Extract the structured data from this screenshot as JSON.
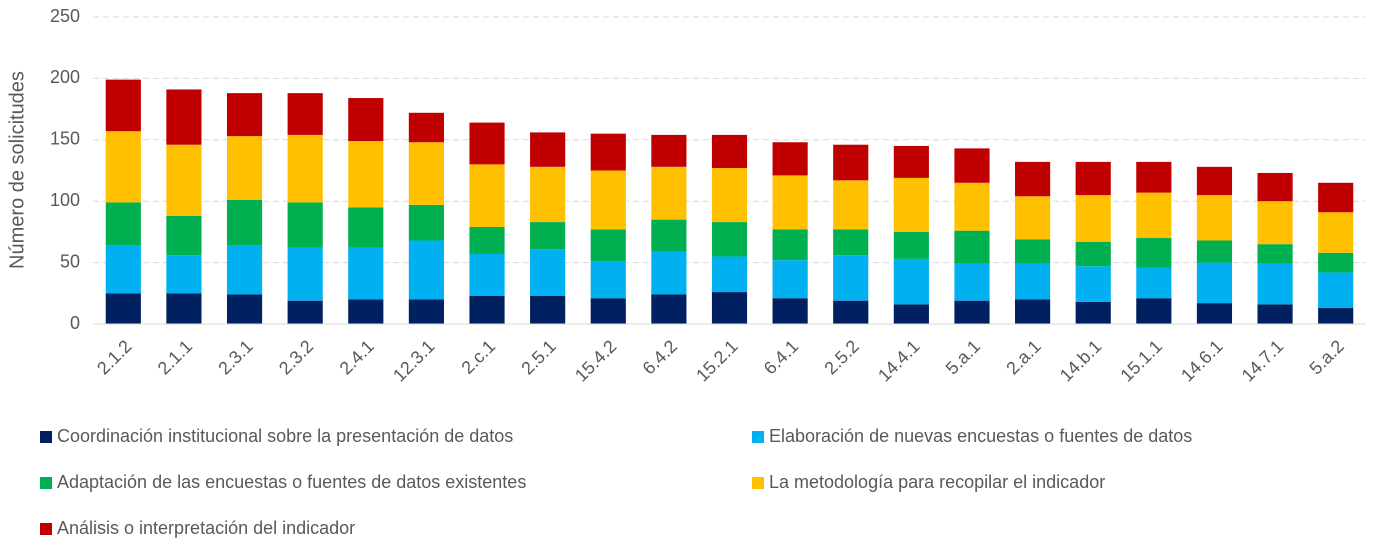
{
  "chart_data": {
    "type": "stacked_bar",
    "y_label": "Número de solicitudes",
    "categories": [
      "2.1.2",
      "2.1.1",
      "2.3.1",
      "2.3.2",
      "2.4.1",
      "12.3.1",
      "2.c.1",
      "2.5.1",
      "15.4.2",
      "6.4.2",
      "15.2.1",
      "6.4.1",
      "2.5.2",
      "14.4.1",
      "5.a.1",
      "2.a.1",
      "14.b.1",
      "15.1.1",
      "14.6.1",
      "14.7.1",
      "5.a.2"
    ],
    "series": [
      {
        "name": "Coordinación institucional sobre la presentación de datos",
        "color": "#002060",
        "values": [
          25,
          25,
          24,
          19,
          20,
          20,
          23,
          23,
          21,
          24,
          26,
          21,
          19,
          16,
          19,
          20,
          18,
          21,
          17,
          16,
          13
        ]
      },
      {
        "name": "Elaboración de nuevas encuestas o fuentes de datos",
        "color": "#00b0f0",
        "values": [
          39,
          31,
          40,
          43,
          42,
          48,
          34,
          38,
          30,
          35,
          29,
          31,
          37,
          37,
          30,
          29,
          29,
          25,
          33,
          33,
          29
        ]
      },
      {
        "name": "Adaptación de las encuestas o fuentes de datos existentes",
        "color": "#00b050",
        "values": [
          35,
          32,
          37,
          37,
          33,
          29,
          22,
          22,
          26,
          26,
          28,
          25,
          21,
          22,
          27,
          20,
          20,
          24,
          18,
          16,
          16
        ]
      },
      {
        "name": "La metodología para recopilar el indicador",
        "color": "#ffc000",
        "values": [
          58,
          58,
          52,
          55,
          54,
          51,
          51,
          45,
          48,
          43,
          44,
          44,
          40,
          44,
          39,
          35,
          38,
          37,
          37,
          35,
          33
        ]
      },
      {
        "name": "Análisis o interpretación del indicador",
        "color": "#c00000",
        "values": [
          42,
          45,
          35,
          34,
          35,
          24,
          34,
          28,
          30,
          26,
          27,
          27,
          29,
          26,
          28,
          28,
          27,
          25,
          23,
          23,
          24
        ]
      }
    ],
    "ylim": [
      0,
      250
    ],
    "yticks": [
      0,
      50,
      100,
      150,
      200,
      250
    ],
    "grid": true
  }
}
